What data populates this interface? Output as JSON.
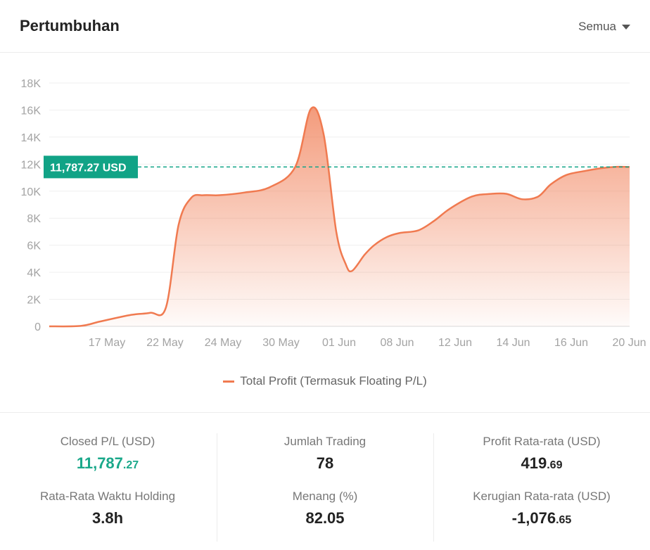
{
  "header": {
    "title": "Pertumbuhan",
    "filter_label": "Semua"
  },
  "colors": {
    "line": "#f07a50",
    "accent_green": "#11a386",
    "grid": "#efefef"
  },
  "chart_data": {
    "type": "area",
    "title": "Pertumbuhan",
    "xlabel": "",
    "ylabel": "",
    "ylim": [
      0,
      18000
    ],
    "yticks": [
      0,
      2000,
      4000,
      6000,
      8000,
      10000,
      12000,
      14000,
      16000,
      18000
    ],
    "ytick_labels": [
      "0",
      "2K",
      "4K",
      "6K",
      "8K",
      "10K",
      "12K",
      "14K",
      "16K",
      "18K"
    ],
    "xtick_labels": [
      "17 May",
      "22 May",
      "24 May",
      "30 May",
      "01 Jun",
      "08 Jun",
      "12 Jun",
      "14 Jun",
      "16 Jun",
      "20 Jun"
    ],
    "grid": true,
    "legend_position": "bottom",
    "series": [
      {
        "name": "Total Profit (Termasuk Floating P/L)",
        "x": [
          0,
          0.5,
          0.8,
          1.3,
          1.6,
          1.85,
          2.05,
          2.25,
          2.45,
          2.7,
          3.1,
          3.5,
          3.9,
          4.15,
          4.35,
          4.55,
          4.7,
          4.8,
          5.0,
          5.15,
          5.35,
          5.55,
          5.85,
          6.1,
          6.35,
          6.7,
          7.0,
          7.25,
          7.5,
          7.75,
          7.95,
          8.2,
          8.5,
          8.75,
          9.0,
          9.2
        ],
        "values": [
          0,
          30,
          350,
          850,
          1000,
          1400,
          7500,
          9500,
          9700,
          9700,
          9900,
          10300,
          11800,
          16100,
          14200,
          7000,
          4600,
          4100,
          5300,
          6000,
          6600,
          6900,
          7100,
          7800,
          8700,
          9600,
          9800,
          9800,
          9400,
          9600,
          10500,
          11200,
          11500,
          11700,
          11800,
          11787.27
        ]
      }
    ],
    "current_value_label": "11,787.27 USD",
    "current_value": 11787.27
  },
  "stats": {
    "closed_pl": {
      "label": "Closed P/L (USD)",
      "int": "11,787",
      "dec": ".27"
    },
    "jumlah_trading": {
      "label": "Jumlah Trading",
      "value": "78"
    },
    "profit_rata": {
      "label": "Profit Rata-rata (USD)",
      "int": "419",
      "dec": ".69"
    },
    "waktu_holding": {
      "label": "Rata-Rata Waktu Holding",
      "value": "3.8h"
    },
    "menang": {
      "label": "Menang (%)",
      "value": "82.05"
    },
    "kerugian_rata": {
      "label": "Kerugian Rata-rata (USD)",
      "int": "-1,076",
      "dec": ".65"
    }
  }
}
